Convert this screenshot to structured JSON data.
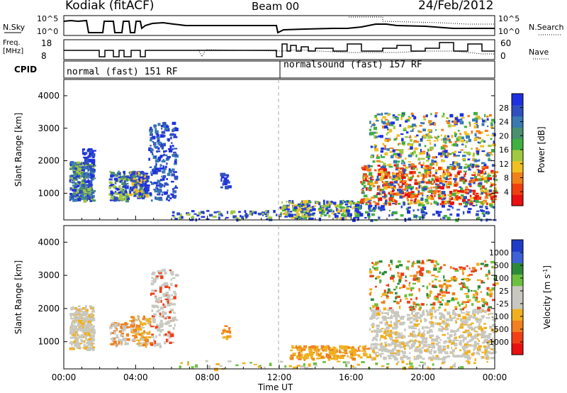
{
  "header": {
    "title": "Kodiak (fitACF)",
    "beam": "Beam 00",
    "date": "24/Feb/2012"
  },
  "summary": {
    "nsky_label": "N.Sky",
    "nsky_ticks": [
      "10^5",
      "10^0"
    ],
    "nsearch_label": "N.Search",
    "nsearch_ticks": [
      "10^5",
      "10^0"
    ],
    "freq_label_1": "Freq.",
    "freq_label_2": "[MHz]",
    "freq_ticks": [
      "18",
      "8"
    ],
    "nave_label": "Nave",
    "nave_ticks": [
      "60",
      "0"
    ],
    "cpid_label": "CPID",
    "cpid_left": "normal (fast) 151 RF",
    "cpid_right": "normalsound (fast) 157 RF"
  },
  "chart_data": [
    {
      "type": "heatmap",
      "title": "Power",
      "xlabel": "Time UT",
      "ylabel": "Slant Range [km]",
      "x_ticks": [
        "00:00",
        "04:00",
        "08:00",
        "12:00",
        "16:00",
        "20:00",
        "00:00"
      ],
      "y_ticks": [
        1000,
        2000,
        3000,
        4000
      ],
      "xlim_hours": [
        0,
        24
      ],
      "ylim_km": [
        180,
        4500
      ],
      "colorbar_label": "Power [dB]",
      "colorbar_ticks": [
        4,
        8,
        12,
        16,
        20,
        24,
        28
      ],
      "colorbar_colors": [
        "#1f30e0",
        "#3050c0",
        "#3a7ab0",
        "#4a9070",
        "#40b040",
        "#a0c840",
        "#f0c020",
        "#f08018",
        "#f04010",
        "#e81010"
      ]
    },
    {
      "type": "heatmap",
      "title": "Velocity",
      "xlabel": "Time UT",
      "ylabel": "Slant Range [km]",
      "x_ticks": [
        "00:00",
        "04:00",
        "08:00",
        "12:00",
        "16:00",
        "20:00",
        "00:00"
      ],
      "y_ticks": [
        1000,
        2000,
        3000,
        4000
      ],
      "xlim_hours": [
        0,
        24
      ],
      "ylim_km": [
        180,
        4500
      ],
      "colorbar_label": "Velocity [m s",
      "colorbar_sup": "-1",
      "colorbar_unit_close": "]",
      "colorbar_ticks": [
        1000,
        500,
        100,
        25,
        -25,
        -100,
        -500,
        -1000
      ],
      "colorbar_colors": [
        "#1e3cc8",
        "#3d62d6",
        "#2e8a3a",
        "#6cc040",
        "#c8c8c0",
        "#c8c8c0",
        "#f0b020",
        "#f08020",
        "#f04018",
        "#e81010"
      ]
    }
  ],
  "x_axis_label": "Time UT"
}
